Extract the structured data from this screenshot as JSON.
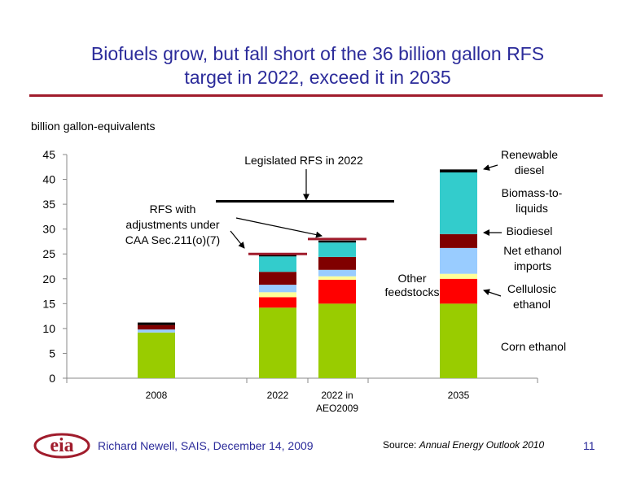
{
  "title_line1": "Biofuels grow, but fall short of the 36 billion gallon RFS",
  "title_line2": "target in 2022, exceed it in 2035",
  "unit_label": "billion gallon-equivalents",
  "footer": {
    "author": "Richard Newell, SAIS, December 14, 2009",
    "source_prefix": "Source: ",
    "source_title": "Annual Energy Outlook 2010",
    "page_number": "11",
    "logo_text": "eia"
  },
  "colors": {
    "corn_ethanol": "#99cc00",
    "cellulosic_ethanol": "#ff0000",
    "other_feedstocks": "#ffff99",
    "net_ethanol_imports": "#99ccff",
    "biodiesel": "#800000",
    "biomass_to_liquids": "#33cccc",
    "renewable_diesel": "#000000",
    "rfs_line": "#a01c2c",
    "title": "#2b2b9a"
  },
  "chart_data": {
    "type": "bar",
    "stacked": true,
    "categories": [
      "2008",
      "2022",
      "2022 in AEO2009",
      "2035"
    ],
    "category_labels": [
      [
        "2008"
      ],
      [
        "2022"
      ],
      [
        "2022 in",
        "AEO2009"
      ],
      [
        "2035"
      ]
    ],
    "ylim": [
      0,
      45
    ],
    "yticks": [
      "0",
      "5",
      "10",
      "15",
      "20",
      "25",
      "30",
      "35",
      "40",
      "45"
    ],
    "series": [
      {
        "key": "corn_ethanol",
        "values": [
          9.2,
          14.2,
          15.0,
          15.0
        ]
      },
      {
        "key": "cellulosic_ethanol",
        "values": [
          0,
          2.1,
          4.8,
          5.0
        ]
      },
      {
        "key": "other_feedstocks",
        "values": [
          0,
          1.0,
          0.7,
          1.0
        ]
      },
      {
        "key": "net_ethanol_imports",
        "values": [
          0.6,
          1.5,
          1.3,
          5.2
        ]
      },
      {
        "key": "biodiesel",
        "values": [
          0.9,
          2.6,
          2.6,
          2.8
        ]
      },
      {
        "key": "biomass_to_liquids",
        "values": [
          0,
          3.1,
          2.9,
          12.4
        ]
      },
      {
        "key": "renewable_diesel",
        "values": [
          0.5,
          0.4,
          0.4,
          0.6
        ]
      }
    ],
    "rfs_adjusted": [
      {
        "category": "2022",
        "value": 25
      },
      {
        "category": "2022 in AEO2009",
        "value": 28
      }
    ],
    "legislated_rfs_2022": 35.6,
    "annotations": {
      "legislated": "Legislated RFS in 2022",
      "rfs_adjusted": [
        "RFS with",
        "adjustments under",
        "CAA Sec.211(o)(7)"
      ],
      "other_feedstocks": [
        "Other",
        "feedstocks"
      ]
    },
    "legend_labels": {
      "renewable_diesel": [
        "Renewable",
        "diesel"
      ],
      "biomass_to_liquids": [
        "Biomass-to-",
        "liquids"
      ],
      "biodiesel": [
        "Biodiesel"
      ],
      "net_ethanol_imports": [
        "Net ethanol",
        "imports"
      ],
      "cellulosic_ethanol": [
        "Cellulosic",
        "ethanol"
      ],
      "corn_ethanol": [
        "Corn ethanol"
      ]
    }
  }
}
